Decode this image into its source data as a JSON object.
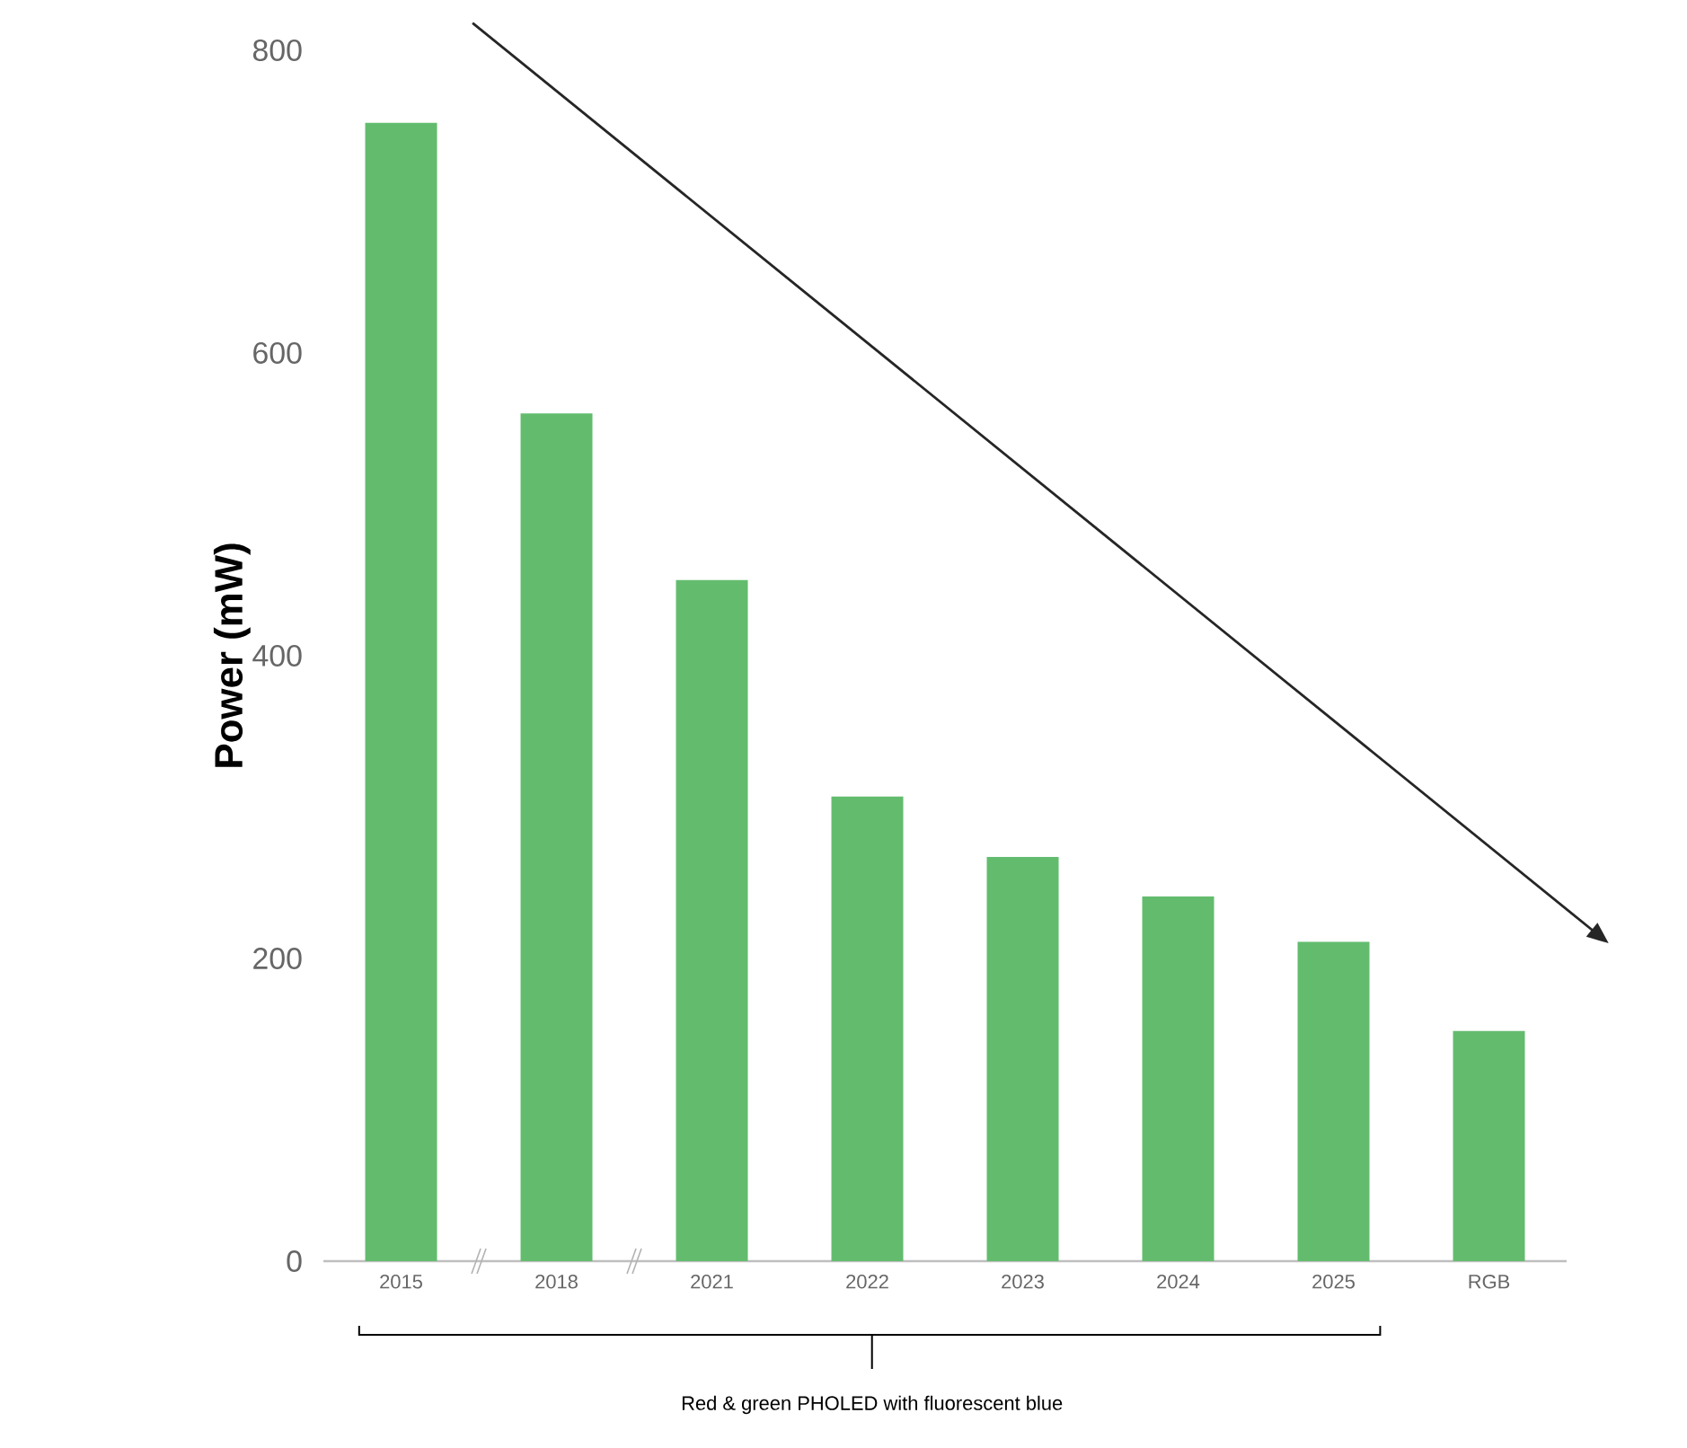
{
  "chart_data": {
    "type": "bar",
    "ylabel": "Power (mW)",
    "categories": [
      "2015",
      "2018",
      "2021",
      "2022",
      "2023",
      "2024",
      "2025",
      "RGB"
    ],
    "values": [
      752,
      560,
      450,
      307,
      267,
      241,
      211,
      152
    ],
    "color": "#63bc6e",
    "ylim": [
      0,
      800
    ],
    "yticks": [
      0,
      200,
      400,
      600,
      800
    ],
    "annotations": [
      "Red & green PHOLED with fluorescent blue"
    ]
  }
}
